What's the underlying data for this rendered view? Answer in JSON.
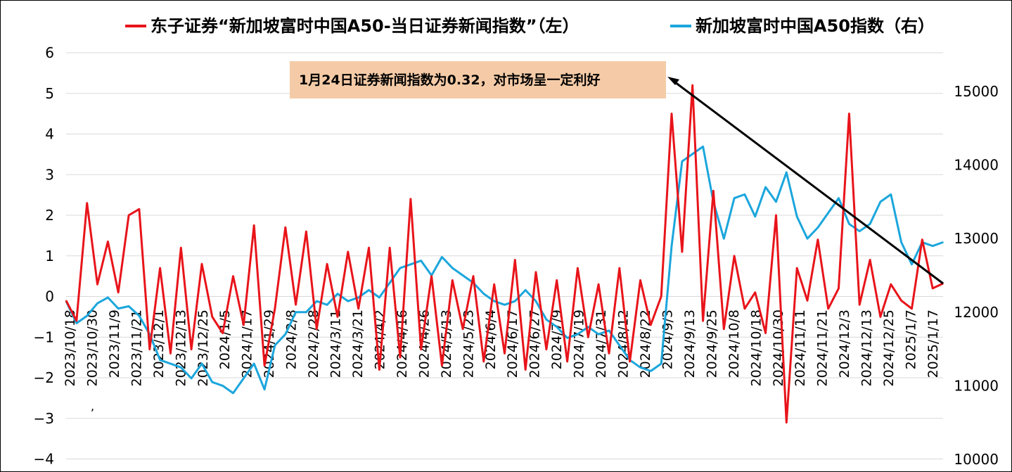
{
  "chart_data": {
    "type": "line",
    "series": [
      {
        "name": "东子证券“新加坡富时中国A50-当日证券新闻指数”（左）",
        "axis": "left",
        "color": "#e8141a",
        "x": [
          "2023/10/18",
          "2023/10/23",
          "2023/10/30",
          "2023/11/6",
          "2023/11/9",
          "2023/11/14",
          "2023/11/21",
          "2023/11/27",
          "2023/12/1",
          "2023/12/6",
          "2023/12/13",
          "2023/12/20",
          "2023/12/25",
          "2023/12/29",
          "2024/1/5",
          "2024/1/10",
          "2024/1/17",
          "2024/1/22",
          "2024/1/29",
          "2024/2/2",
          "2024/2/8",
          "2024/2/20",
          "2024/2/28",
          "2024/3/5",
          "2024/3/11",
          "2024/3/15",
          "2024/3/21",
          "2024/3/27",
          "2024/4/2",
          "2024/4/9",
          "2024/4/16",
          "2024/4/22",
          "2024/4/26",
          "2024/5/7",
          "2024/5/13",
          "2024/5/17",
          "2024/5/23",
          "2024/5/29",
          "2024/6/4",
          "2024/6/11",
          "2024/6/17",
          "2024/6/21",
          "2024/6/27",
          "2024/7/3",
          "2024/7/9",
          "2024/7/15",
          "2024/7/19",
          "2024/7/25",
          "2024/7/31",
          "2024/8/6",
          "2024/8/12",
          "2024/8/16",
          "2024/8/22",
          "2024/8/28",
          "2024/9/3",
          "2024/9/9",
          "2024/9/13",
          "2024/9/20",
          "2024/9/25",
          "2024/9/27",
          "2024/10/1",
          "2024/10/8",
          "2024/10/11",
          "2024/10/15",
          "2024/10/18",
          "2024/10/24",
          "2024/10/30",
          "2024/11/5",
          "2024/11/11",
          "2024/11/14",
          "2024/11/21",
          "2024/11/27",
          "2024/12/3",
          "2024/12/9",
          "2024/12/13",
          "2024/12/16",
          "2024/12/19",
          "2024/12/25",
          "2024/12/31",
          "2025/1/7",
          "2025/1/13",
          "2025/1/17",
          "2025/1/20",
          "2025/1/22",
          "2025/1/24"
        ],
        "values": [
          -0.1,
          -0.6,
          2.3,
          0.3,
          1.35,
          0.1,
          2.0,
          2.15,
          -1.3,
          0.7,
          -1.4,
          1.2,
          -1.3,
          0.8,
          -0.5,
          -0.9,
          0.5,
          -0.7,
          1.75,
          -1.7,
          -0.3,
          1.7,
          -0.2,
          1.6,
          -0.8,
          0.8,
          -0.5,
          1.1,
          -0.3,
          1.2,
          -1.8,
          1.2,
          -1.5,
          2.4,
          -1.3,
          0.5,
          -1.7,
          0.4,
          -0.8,
          0.5,
          -1.6,
          0.3,
          -1.4,
          0.9,
          -1.8,
          0.6,
          -1.3,
          0.4,
          -1.6,
          0.7,
          -1.0,
          0.3,
          -1.4,
          0.7,
          -1.6,
          0.4,
          -0.7,
          0.0,
          4.5,
          1.1,
          5.2,
          -0.6,
          2.6,
          -0.8,
          1.0,
          -0.3,
          0.1,
          -0.9,
          2.0,
          -3.1,
          0.7,
          -0.1,
          1.4,
          -0.3,
          0.2,
          4.5,
          -0.2,
          0.9,
          -0.5,
          0.3,
          -0.1,
          -0.3,
          1.4,
          0.2,
          0.32
        ]
      },
      {
        "name": "新加坡富时中国A50指数（右）",
        "axis": "right",
        "color": "#1ba6dc",
        "x": [
          "2023/10/18",
          "2023/10/23",
          "2023/10/30",
          "2023/11/6",
          "2023/11/9",
          "2023/11/14",
          "2023/11/21",
          "2023/11/27",
          "2023/12/1",
          "2023/12/6",
          "2023/12/13",
          "2023/12/20",
          "2023/12/25",
          "2023/12/29",
          "2024/1/5",
          "2024/1/10",
          "2024/1/17",
          "2024/1/22",
          "2024/1/29",
          "2024/2/2",
          "2024/2/8",
          "2024/2/20",
          "2024/2/28",
          "2024/3/5",
          "2024/3/11",
          "2024/3/15",
          "2024/3/21",
          "2024/3/27",
          "2024/4/2",
          "2024/4/9",
          "2024/4/16",
          "2024/4/22",
          "2024/4/26",
          "2024/5/7",
          "2024/5/13",
          "2024/5/17",
          "2024/5/23",
          "2024/5/29",
          "2024/6/4",
          "2024/6/11",
          "2024/6/17",
          "2024/6/21",
          "2024/6/27",
          "2024/7/3",
          "2024/7/9",
          "2024/7/15",
          "2024/7/19",
          "2024/7/25",
          "2024/7/31",
          "2024/8/6",
          "2024/8/12",
          "2024/8/16",
          "2024/8/22",
          "2024/8/28",
          "2024/9/3",
          "2024/9/9",
          "2024/9/13",
          "2024/9/20",
          "2024/9/25",
          "2024/9/27",
          "2024/10/1",
          "2024/10/8",
          "2024/10/11",
          "2024/10/15",
          "2024/10/18",
          "2024/10/24",
          "2024/10/30",
          "2024/11/5",
          "2024/11/11",
          "2024/11/14",
          "2024/11/21",
          "2024/11/27",
          "2024/12/3",
          "2024/12/9",
          "2024/12/13",
          "2024/12/16",
          "2024/12/19",
          "2024/12/25",
          "2024/12/31",
          "2025/1/7",
          "2025/1/13",
          "2025/1/17",
          "2025/1/20",
          "2025/1/22",
          "2025/1/24"
        ],
        "values": [
          12150,
          11850,
          11950,
          12120,
          12200,
          12050,
          12080,
          11950,
          11700,
          11350,
          11300,
          11250,
          11100,
          11300,
          11050,
          11000,
          10900,
          11100,
          11300,
          10950,
          11550,
          11700,
          12000,
          12000,
          12150,
          12100,
          12250,
          12150,
          12200,
          12300,
          12200,
          12400,
          12600,
          12650,
          12700,
          12500,
          12750,
          12600,
          12500,
          12400,
          12250,
          12150,
          12100,
          12150,
          12300,
          12150,
          11900,
          11800,
          11650,
          11700,
          11800,
          11700,
          11750,
          11550,
          11350,
          11250,
          11200,
          11300,
          12900,
          14050,
          14150,
          14250,
          13500,
          13000,
          13550,
          13600,
          13300,
          13700,
          13500,
          13900,
          13300,
          13000,
          13150,
          13350,
          13550,
          13200,
          13100,
          13200,
          13500,
          13600,
          12950,
          12650,
          12950,
          12900,
          12950
        ]
      }
    ],
    "y_left": {
      "ylim": [
        -4,
        6
      ],
      "ticks": [
        "6",
        "5",
        "4",
        "3",
        "2",
        "1",
        "0",
        "−1",
        "−2",
        "−3",
        "−4"
      ]
    },
    "y_right": {
      "ylim": [
        10000,
        15500
      ],
      "ticks": [
        "15000",
        "14000",
        "13000",
        "12000",
        "11000",
        "10000"
      ]
    },
    "x_ticks": [
      "2023/10/18",
      "2023/10/30",
      "2023/11/9",
      "2023/11/21",
      "2023/12/1",
      "2023/12/13",
      "2023/12/25",
      "2024/1/5",
      "2024/1/17",
      "2024/1/29",
      "2024/2/8",
      "2024/2/28",
      "2024/3/11",
      "2024/3/21",
      "2024/4/2",
      "2024/4/16",
      "2024/4/26",
      "2024/5/13",
      "2024/5/23",
      "2024/6/4",
      "2024/6/17",
      "2024/6/27",
      "2024/7/9",
      "2024/7/19",
      "2024/7/31",
      "2024/8/12",
      "2024/8/22",
      "2024/9/3",
      "2024/9/13",
      "2024/9/25",
      "2024/10/8",
      "2024/10/18",
      "2024/10/30",
      "2024/11/11",
      "2024/11/21",
      "2024/12/3",
      "2024/12/13",
      "2024/12/25",
      "2025/1/7",
      "2025/1/17"
    ],
    "grid": true,
    "legend_position": "top",
    "annotation": {
      "text": "1月24日证券新闻指数为0.32，对市场呈一定利好",
      "background": "#f5cba7"
    }
  }
}
